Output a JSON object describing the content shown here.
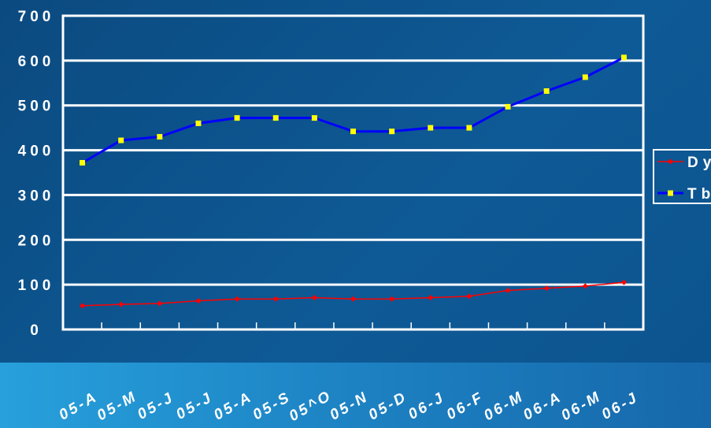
{
  "chart_data": {
    "type": "line",
    "categories": [
      "05-A",
      "05-M",
      "05-J",
      "05-J",
      "05-A",
      "05-S",
      "05^O",
      "05-N",
      "05-D",
      "06-J",
      "06-F",
      "06-M",
      "06-A",
      "06-M",
      "06-J"
    ],
    "ylim": [
      0,
      700
    ],
    "yticks": [
      0,
      100,
      200,
      300,
      400,
      500,
      600,
      700
    ],
    "grid": true,
    "legend_position": "right",
    "series": [
      {
        "name": "Dy",
        "color": "#ff0000",
        "marker": "diamond",
        "values": [
          53,
          56,
          58,
          64,
          68,
          68,
          71,
          68,
          68,
          71,
          74,
          87,
          92,
          97,
          105
        ]
      },
      {
        "name": "Tb",
        "color": "#0000ff",
        "marker_color": "#ffff00",
        "marker": "square",
        "values": [
          372,
          422,
          430,
          460,
          472,
          472,
          472,
          442,
          442,
          450,
          450,
          497,
          532,
          563,
          607
        ]
      }
    ]
  }
}
